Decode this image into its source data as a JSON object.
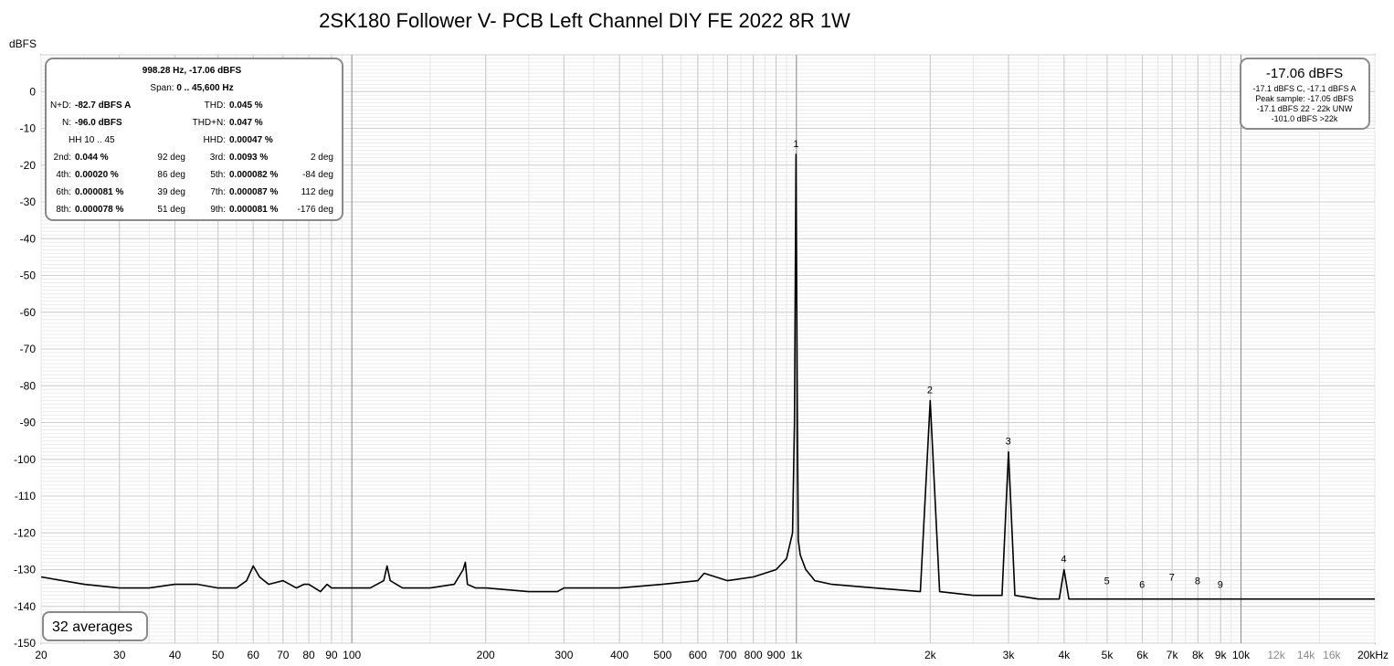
{
  "chart_data": {
    "type": "line",
    "title": "2SK180 Follower V- PCB Left Channel DIY FE 2022 8R 1W",
    "ylabel": "dBFS",
    "xunit_label": "20kHz",
    "xscale": "log",
    "xlim": [
      20,
      20000
    ],
    "ylim": [
      -150,
      10
    ],
    "grid": true,
    "y_ticks": [
      "0",
      "-10",
      "-20",
      "-30",
      "-40",
      "-50",
      "-60",
      "-70",
      "-80",
      "-90",
      "-100",
      "-110",
      "-120",
      "-130",
      "-140",
      "-150"
    ],
    "x_ticks": [
      {
        "v": 20,
        "t": "20"
      },
      {
        "v": 30,
        "t": "30"
      },
      {
        "v": 40,
        "t": "40"
      },
      {
        "v": 50,
        "t": "50"
      },
      {
        "v": 60,
        "t": "60"
      },
      {
        "v": 70,
        "t": "70"
      },
      {
        "v": 80,
        "t": "80"
      },
      {
        "v": 90,
        "t": "90"
      },
      {
        "v": 100,
        "t": "100"
      },
      {
        "v": 200,
        "t": "200"
      },
      {
        "v": 300,
        "t": "300"
      },
      {
        "v": 400,
        "t": "400"
      },
      {
        "v": 500,
        "t": "500"
      },
      {
        "v": 600,
        "t": "600"
      },
      {
        "v": 700,
        "t": "700"
      },
      {
        "v": 800,
        "t": "800"
      },
      {
        "v": 900,
        "t": "900"
      },
      {
        "v": 1000,
        "t": "1k"
      },
      {
        "v": 2000,
        "t": "2k"
      },
      {
        "v": 3000,
        "t": "3k"
      },
      {
        "v": 4000,
        "t": "4k"
      },
      {
        "v": 5000,
        "t": "5k"
      },
      {
        "v": 6000,
        "t": "6k"
      },
      {
        "v": 7000,
        "t": "7k"
      },
      {
        "v": 8000,
        "t": "8k"
      },
      {
        "v": 9000,
        "t": "9k"
      },
      {
        "v": 10000,
        "t": "10k"
      }
    ],
    "x_ticks_gray": [
      {
        "v": 12000,
        "t": "12k"
      },
      {
        "v": 14000,
        "t": "14k"
      },
      {
        "v": 16000,
        "t": "16k"
      }
    ],
    "series": [
      {
        "color": "#000000",
        "x": [
          20,
          25,
          30,
          35,
          40,
          45,
          50,
          55,
          58,
          60,
          62,
          65,
          70,
          75,
          78,
          80,
          85,
          88,
          90,
          95,
          100,
          110,
          118,
          120,
          122,
          130,
          140,
          150,
          170,
          178,
          180,
          182,
          190,
          200,
          250,
          290,
          300,
          400,
          500,
          600,
          620,
          700,
          800,
          900,
          950,
          980,
          990,
          998,
          1005,
          1010,
          1020,
          1050,
          1100,
          1200,
          1500,
          1900,
          2000,
          2100,
          2500,
          2900,
          3000,
          3100,
          3500,
          3900,
          4000,
          4100,
          5000,
          6000,
          7000,
          8000,
          9000,
          10000,
          14000,
          20000
        ],
        "y": [
          -132,
          -134,
          -135,
          -135,
          -134,
          -134,
          -135,
          -135,
          -133,
          -129,
          -132,
          -134,
          -133,
          -135,
          -134,
          -134,
          -136,
          -134,
          -135,
          -135,
          -135,
          -135,
          -133,
          -129,
          -133,
          -135,
          -135,
          -135,
          -134,
          -130,
          -128,
          -134,
          -135,
          -135,
          -136,
          -136,
          -135,
          -135,
          -134,
          -133,
          -131,
          -133,
          -132,
          -130,
          -127,
          -120,
          -90,
          -17.06,
          -90,
          -122,
          -126,
          -130,
          -133,
          -134,
          -135,
          -136,
          -84,
          -136,
          -137,
          -137,
          -98,
          -137,
          -138,
          -138,
          -130,
          -138,
          -138,
          -138,
          -138,
          -138,
          -138,
          -138,
          -138,
          -138
        ]
      }
    ],
    "harmonic_labels": [
      {
        "n": "1",
        "f": 998.28,
        "db": -17.06
      },
      {
        "n": "2",
        "f": 1996.6,
        "db": -84
      },
      {
        "n": "3",
        "f": 2994.8,
        "db": -98
      },
      {
        "n": "4",
        "f": 3993.1,
        "db": -130
      },
      {
        "n": "5",
        "f": 4991.4,
        "db": -136
      },
      {
        "n": "6",
        "f": 5989.7,
        "db": -137
      },
      {
        "n": "7",
        "f": 6988,
        "db": -135
      },
      {
        "n": "8",
        "f": 7986.2,
        "db": -136
      },
      {
        "n": "9",
        "f": 8984.5,
        "db": -137
      }
    ]
  },
  "info_box": {
    "header": "998.28 Hz, -17.06 dBFS",
    "span_label": "Span:",
    "span_value": "0 .. 45,600 Hz",
    "rows": [
      {
        "l1": "N+D:",
        "v1": "-82.7 dBFS A",
        "p1": "",
        "l2": "THD:",
        "v2": "0.045 %",
        "p2": ""
      },
      {
        "l1": "N:",
        "v1": "-96.0 dBFS",
        "p1": "",
        "l2": "THD+N:",
        "v2": "0.047 %",
        "p2": ""
      },
      {
        "l1": "HH 10 .. 45",
        "v1": "",
        "p1": "",
        "l2": "HHD:",
        "v2": "0.00047 %",
        "p2": ""
      },
      {
        "l1": "2nd:",
        "v1": "0.044 %",
        "p1": "92 deg",
        "l2": "3rd:",
        "v2": "0.0093 %",
        "p2": "2 deg"
      },
      {
        "l1": "4th:",
        "v1": "0.00020 %",
        "p1": "86 deg",
        "l2": "5th:",
        "v2": "0.000082 %",
        "p2": "-84 deg"
      },
      {
        "l1": "6th:",
        "v1": "0.000081 %",
        "p1": "39 deg",
        "l2": "7th:",
        "v2": "0.000087 %",
        "p2": "112 deg"
      },
      {
        "l1": "8th:",
        "v1": "0.000078 %",
        "p1": "51 deg",
        "l2": "9th:",
        "v2": "0.000081 %",
        "p2": "-176 deg"
      }
    ]
  },
  "level_box": {
    "main": "-17.06 dBFS",
    "lines": [
      "-17.1 dBFS C, -17.1 dBFS A",
      "Peak sample: -17.05 dBFS",
      "-17.1 dBFS 22 - 22k UNW",
      "-101.0 dBFS >22k"
    ]
  },
  "averages": "32 averages"
}
